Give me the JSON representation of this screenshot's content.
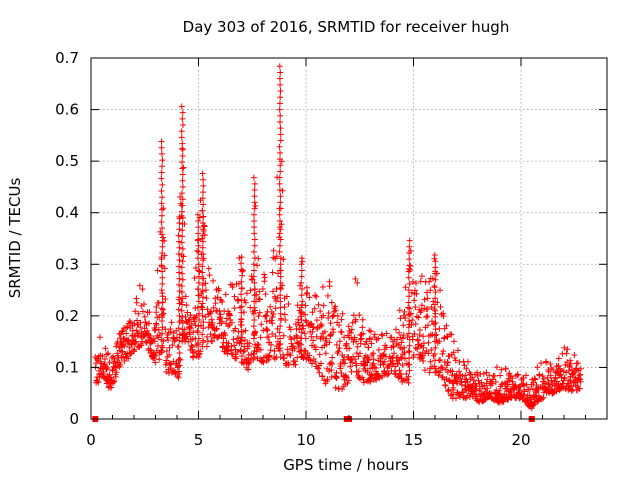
{
  "chart_data": {
    "type": "scatter",
    "title": "Day 303 of 2016, SRMTID for receiver hugh",
    "xlabel": "GPS time / hours",
    "ylabel": "SRMTID / TECUs",
    "xlim": [
      0,
      24
    ],
    "ylim": [
      0,
      0.7
    ],
    "x_ticks": [
      0,
      5,
      10,
      15,
      20
    ],
    "y_ticks": [
      0,
      0.1,
      0.2,
      0.3,
      0.4,
      0.5,
      0.6,
      0.7
    ],
    "x_tick_labels": [
      "0",
      "5",
      "10",
      "15",
      "20"
    ],
    "y_tick_labels": [
      "0",
      "0.1",
      "0.2",
      "0.3",
      "0.4",
      "0.5",
      "0.6",
      "0.7"
    ],
    "grid": true,
    "marker": "+",
    "series_color": "#ff0000",
    "axis_markers": [
      0.2,
      11.9,
      12.0,
      20.5
    ],
    "envelope": [
      [
        0.2,
        0.06,
        0.17
      ],
      [
        0.5,
        0.08,
        0.16
      ],
      [
        0.8,
        0.06,
        0.13
      ],
      [
        1.0,
        0.06,
        0.12
      ],
      [
        1.3,
        0.1,
        0.17
      ],
      [
        1.6,
        0.11,
        0.18
      ],
      [
        2.0,
        0.13,
        0.22
      ],
      [
        2.3,
        0.14,
        0.28
      ],
      [
        2.6,
        0.14,
        0.24
      ],
      [
        2.9,
        0.11,
        0.2
      ],
      [
        3.1,
        0.09,
        0.3
      ],
      [
        3.3,
        0.13,
        0.55
      ],
      [
        3.5,
        0.08,
        0.22
      ],
      [
        3.8,
        0.09,
        0.2
      ],
      [
        4.1,
        0.08,
        0.4
      ],
      [
        4.25,
        0.15,
        0.61
      ],
      [
        4.5,
        0.15,
        0.24
      ],
      [
        4.8,
        0.11,
        0.26
      ],
      [
        5.0,
        0.12,
        0.4
      ],
      [
        5.2,
        0.14,
        0.48
      ],
      [
        5.5,
        0.14,
        0.28
      ],
      [
        5.8,
        0.16,
        0.26
      ],
      [
        6.2,
        0.13,
        0.24
      ],
      [
        6.6,
        0.12,
        0.3
      ],
      [
        7.0,
        0.11,
        0.32
      ],
      [
        7.4,
        0.09,
        0.25
      ],
      [
        7.6,
        0.12,
        0.48
      ],
      [
        8.0,
        0.11,
        0.3
      ],
      [
        8.4,
        0.11,
        0.25
      ],
      [
        8.8,
        0.12,
        0.69
      ],
      [
        9.1,
        0.1,
        0.28
      ],
      [
        9.4,
        0.1,
        0.17
      ],
      [
        9.8,
        0.12,
        0.32
      ],
      [
        10.2,
        0.11,
        0.25
      ],
      [
        10.6,
        0.09,
        0.24
      ],
      [
        11.0,
        0.06,
        0.29
      ],
      [
        11.5,
        0.05,
        0.21
      ],
      [
        12.0,
        0.07,
        0.2
      ],
      [
        12.3,
        0.09,
        0.29
      ],
      [
        12.6,
        0.07,
        0.21
      ],
      [
        13.0,
        0.07,
        0.17
      ],
      [
        13.5,
        0.08,
        0.17
      ],
      [
        14.0,
        0.09,
        0.19
      ],
      [
        14.5,
        0.07,
        0.22
      ],
      [
        14.8,
        0.07,
        0.35
      ],
      [
        15.2,
        0.12,
        0.3
      ],
      [
        15.6,
        0.09,
        0.3
      ],
      [
        16.0,
        0.09,
        0.33
      ],
      [
        16.4,
        0.07,
        0.2
      ],
      [
        16.8,
        0.04,
        0.16
      ],
      [
        17.2,
        0.04,
        0.12
      ],
      [
        17.6,
        0.04,
        0.11
      ],
      [
        18.0,
        0.03,
        0.09
      ],
      [
        18.5,
        0.04,
        0.1
      ],
      [
        19.0,
        0.03,
        0.11
      ],
      [
        19.5,
        0.04,
        0.09
      ],
      [
        20.0,
        0.04,
        0.09
      ],
      [
        20.5,
        0.02,
        0.08
      ],
      [
        21.0,
        0.04,
        0.12
      ],
      [
        21.5,
        0.05,
        0.11
      ],
      [
        22.0,
        0.06,
        0.15
      ],
      [
        22.5,
        0.05,
        0.13
      ],
      [
        22.8,
        0.06,
        0.1
      ]
    ]
  }
}
